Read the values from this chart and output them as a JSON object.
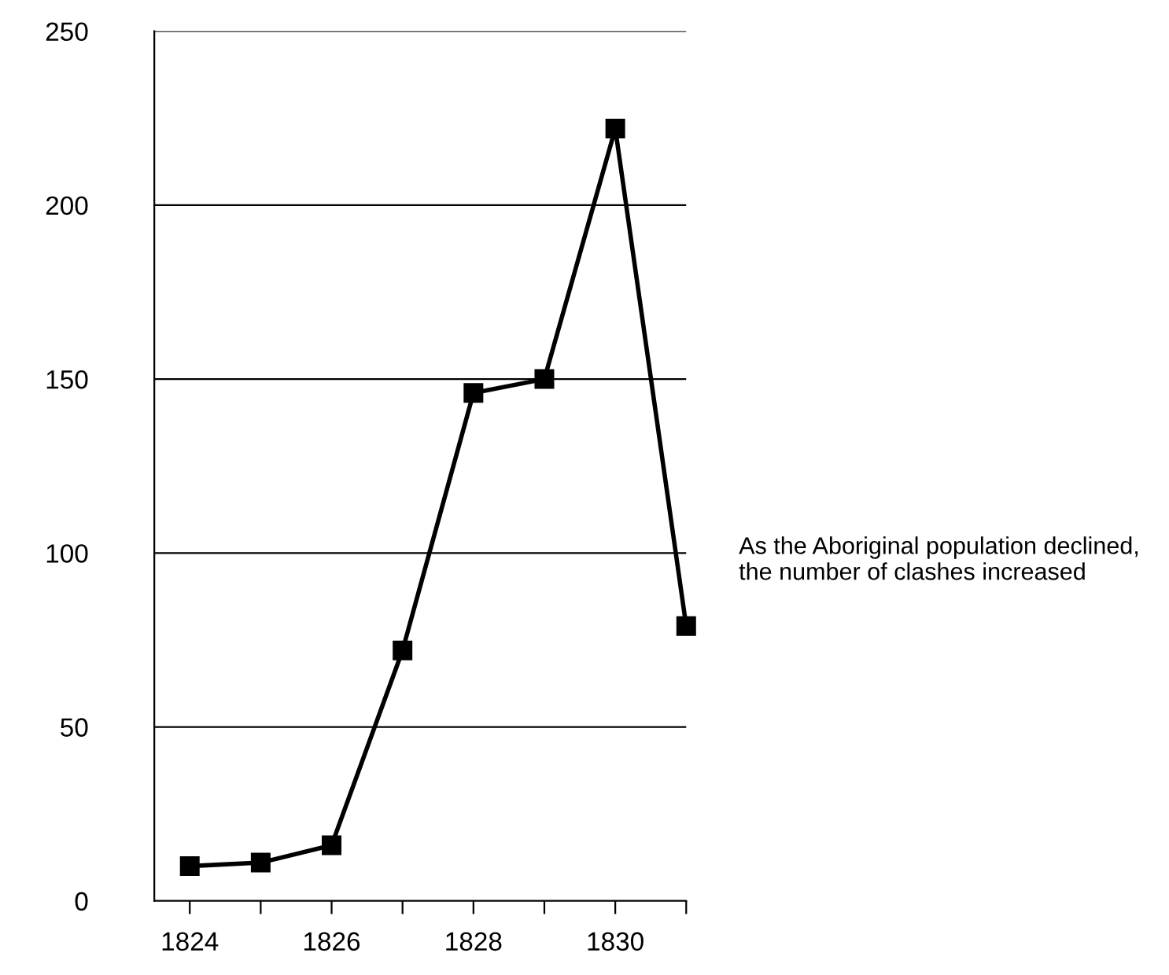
{
  "chart_data": {
    "type": "line",
    "x": [
      1824,
      1825,
      1826,
      1827,
      1828,
      1829,
      1830,
      1831
    ],
    "values": [
      10,
      11,
      16,
      72,
      146,
      150,
      222,
      79
    ],
    "color": "#000000",
    "marker": "square",
    "line_style": "solid",
    "xlim": [
      1823.5,
      1831
    ],
    "xticks": [
      1824,
      {
        "value": 1825,
        "label": null
      },
      1826,
      {
        "value": 1827,
        "label": null
      },
      1828,
      {
        "value": 1829,
        "label": null
      },
      1830,
      {
        "value": 1831,
        "label": null
      }
    ],
    "ylim": [
      0,
      250
    ],
    "yticks": [
      0,
      50,
      100,
      150,
      200,
      250
    ],
    "grid": "y",
    "annotations": [
      "As the Aboriginal population declined, the number of clashes increased"
    ]
  }
}
